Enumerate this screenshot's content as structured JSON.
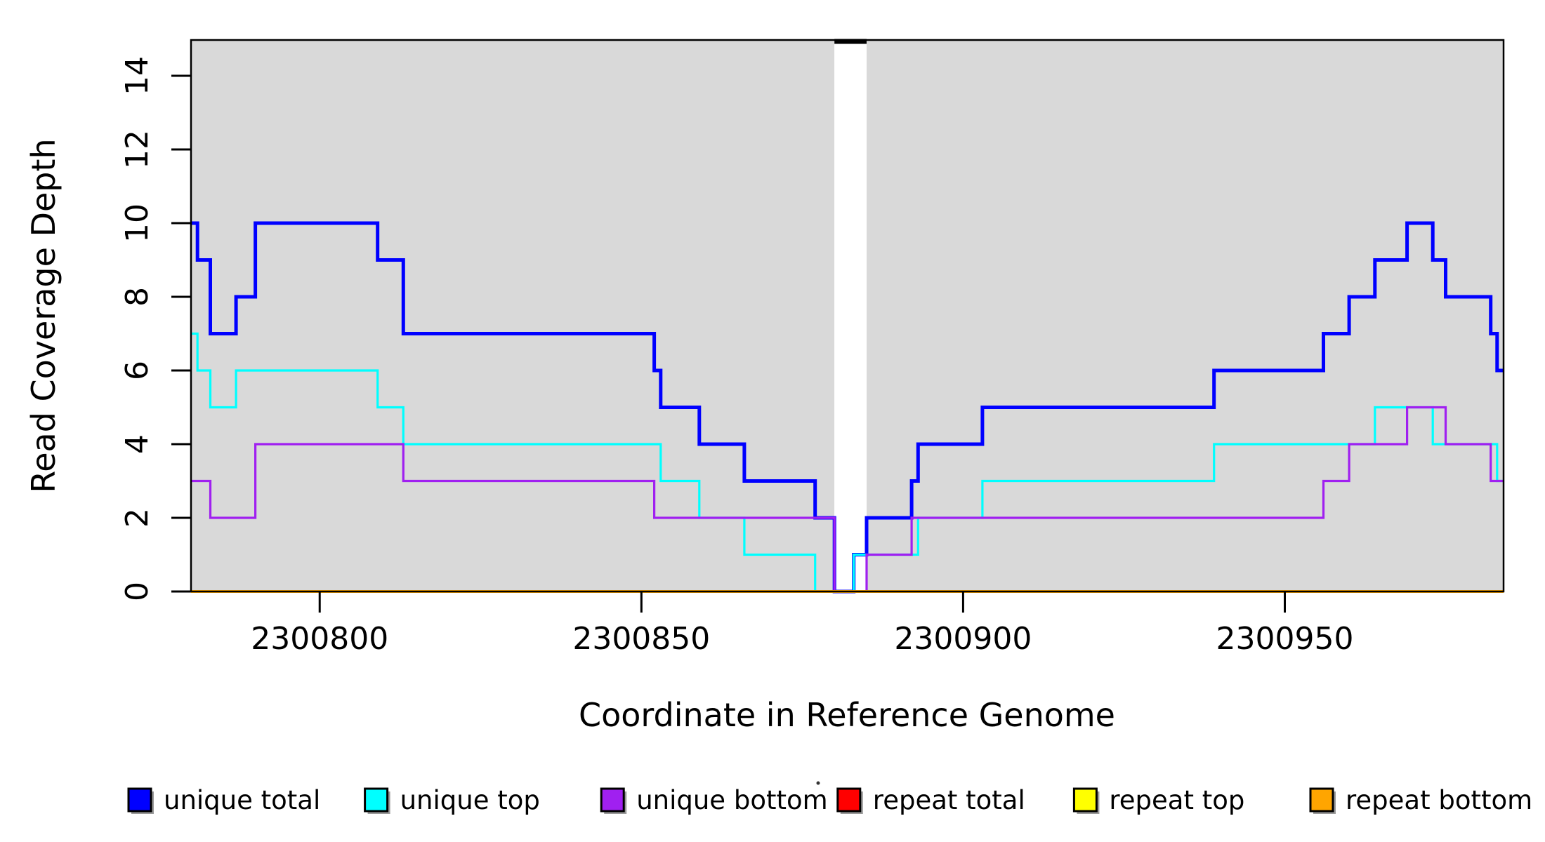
{
  "chart_data": {
    "type": "line",
    "subtype": "step",
    "title": "",
    "xlabel": "Coordinate in Reference Genome",
    "ylabel": "Read Coverage Depth",
    "x_range": [
      2300780,
      2300984
    ],
    "ylim": [
      0,
      15
    ],
    "x_ticks": [
      2300800,
      2300850,
      2300900,
      2300950
    ],
    "y_ticks": [
      0,
      2,
      4,
      6,
      8,
      10,
      12,
      14
    ],
    "grid": false,
    "plot_background": "#d9d9d9",
    "outer_background": "#ffffff",
    "box_color": "#000000",
    "coverage_gap": {
      "start": 2300880,
      "end": 2300885
    },
    "legend_position": "bottom",
    "series": [
      {
        "name": "unique total",
        "color": "#0000ff",
        "line_width": 5,
        "steps": [
          [
            2300780,
            10
          ],
          [
            2300781,
            9
          ],
          [
            2300783,
            7
          ],
          [
            2300787,
            8
          ],
          [
            2300790,
            10
          ],
          [
            2300809,
            9
          ],
          [
            2300813,
            7
          ],
          [
            2300852,
            6
          ],
          [
            2300853,
            5
          ],
          [
            2300859,
            4
          ],
          [
            2300866,
            3
          ],
          [
            2300877,
            2
          ],
          [
            2300880,
            0
          ],
          [
            2300883,
            1
          ],
          [
            2300885,
            2
          ],
          [
            2300892,
            3
          ],
          [
            2300893,
            4
          ],
          [
            2300903,
            5
          ],
          [
            2300939,
            6
          ],
          [
            2300956,
            7
          ],
          [
            2300960,
            8
          ],
          [
            2300964,
            9
          ],
          [
            2300969,
            10
          ],
          [
            2300973,
            9
          ],
          [
            2300975,
            8
          ],
          [
            2300982,
            7
          ],
          [
            2300983,
            6
          ]
        ]
      },
      {
        "name": "unique top",
        "color": "#00ffff",
        "line_width": 3.2,
        "steps": [
          [
            2300780,
            7
          ],
          [
            2300781,
            6
          ],
          [
            2300783,
            5
          ],
          [
            2300787,
            6
          ],
          [
            2300809,
            5
          ],
          [
            2300813,
            4
          ],
          [
            2300853,
            3
          ],
          [
            2300859,
            2
          ],
          [
            2300866,
            1
          ],
          [
            2300877,
            0
          ],
          [
            2300883,
            1
          ],
          [
            2300893,
            2
          ],
          [
            2300903,
            3
          ],
          [
            2300939,
            4
          ],
          [
            2300964,
            5
          ],
          [
            2300973,
            4
          ],
          [
            2300983,
            3
          ]
        ]
      },
      {
        "name": "unique bottom",
        "color": "#a020f0",
        "line_width": 3.2,
        "steps": [
          [
            2300780,
            3
          ],
          [
            2300783,
            2
          ],
          [
            2300790,
            4
          ],
          [
            2300813,
            3
          ],
          [
            2300852,
            2
          ],
          [
            2300880,
            0
          ],
          [
            2300885,
            1
          ],
          [
            2300892,
            2
          ],
          [
            2300956,
            3
          ],
          [
            2300960,
            4
          ],
          [
            2300969,
            5
          ],
          [
            2300975,
            4
          ],
          [
            2300982,
            3
          ]
        ]
      },
      {
        "name": "repeat total",
        "color": "#ff0000",
        "line_width": 3.2,
        "steps": [
          [
            2300780,
            0
          ]
        ]
      },
      {
        "name": "repeat top",
        "color": "#ffff00",
        "line_width": 3.2,
        "steps": [
          [
            2300780,
            0
          ]
        ]
      },
      {
        "name": "repeat bottom",
        "color": "#ffa500",
        "line_width": 4,
        "steps": [
          [
            2300780,
            0
          ]
        ]
      }
    ],
    "legend": [
      {
        "label": "unique total",
        "color": "#0000ff"
      },
      {
        "label": "unique top",
        "color": "#00ffff"
      },
      {
        "label": "unique bottom",
        "color": "#a020f0"
      },
      {
        "label": "repeat total",
        "color": "#ff0000"
      },
      {
        "label": "repeat top",
        "color": "#ffff00"
      },
      {
        "label": "repeat bottom",
        "color": "#ffa500"
      }
    ]
  }
}
